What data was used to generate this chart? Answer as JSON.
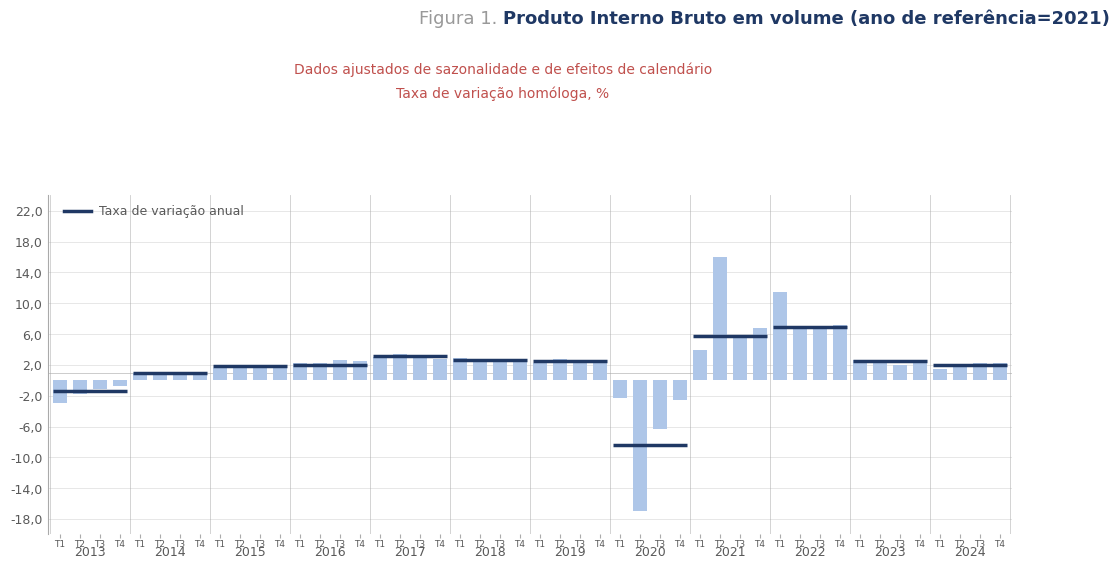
{
  "title_gray_text": "Figura 1. ",
  "title_bold_text": "Produto Interno Bruto em volume (ano de referência=2021)",
  "subtitle1": "Dados ajustados de sazonalidade e de efeitos de calendário",
  "subtitle2": "Taxa de variação homóloga, %",
  "bar_color": "#aec6e8",
  "line_color": "#1f3864",
  "background_color": "#ffffff",
  "ylim_min": -20,
  "ylim_max": 24,
  "yticks": [
    -18,
    -14,
    -10,
    -6,
    -2,
    2,
    6,
    10,
    14,
    18,
    22
  ],
  "years": [
    2013,
    2014,
    2015,
    2016,
    2017,
    2018,
    2019,
    2020,
    2021,
    2022,
    2023,
    2024
  ],
  "quarterly_values": [
    [
      -3.0,
      -1.8,
      -1.1,
      -0.7
    ],
    [
      1.0,
      1.0,
      0.8,
      0.7
    ],
    [
      1.6,
      1.8,
      1.7,
      1.7
    ],
    [
      2.2,
      2.3,
      2.6,
      2.5
    ],
    [
      3.0,
      3.4,
      3.3,
      2.8
    ],
    [
      2.9,
      2.6,
      2.6,
      2.4
    ],
    [
      2.3,
      2.8,
      2.6,
      2.7
    ],
    [
      -2.3,
      -16.9,
      -6.3,
      -2.6
    ],
    [
      3.9,
      16.0,
      5.8,
      6.8
    ],
    [
      11.5,
      7.1,
      6.8,
      7.2
    ],
    [
      2.7,
      2.5,
      2.0,
      2.2
    ],
    [
      1.5,
      1.8,
      2.2,
      2.3
    ]
  ],
  "annual_values": [
    -1.4,
    0.9,
    1.8,
    2.0,
    3.1,
    2.6,
    2.5,
    -8.4,
    5.7,
    6.9,
    2.5,
    2.0
  ],
  "legend_label": "Taxa de variação anual",
  "title_gray_color": "#999999",
  "title_bold_color": "#1f3864",
  "subtitle_color": "#c0504d",
  "axis_color": "#aaaaaa",
  "tick_label_color": "#595959",
  "separator_color": "#aaaaaa",
  "title_fontsize": 13,
  "subtitle_fontsize": 10,
  "axis_label_fontsize": 9,
  "quarter_label_fontsize": 6.5,
  "year_label_fontsize": 9
}
